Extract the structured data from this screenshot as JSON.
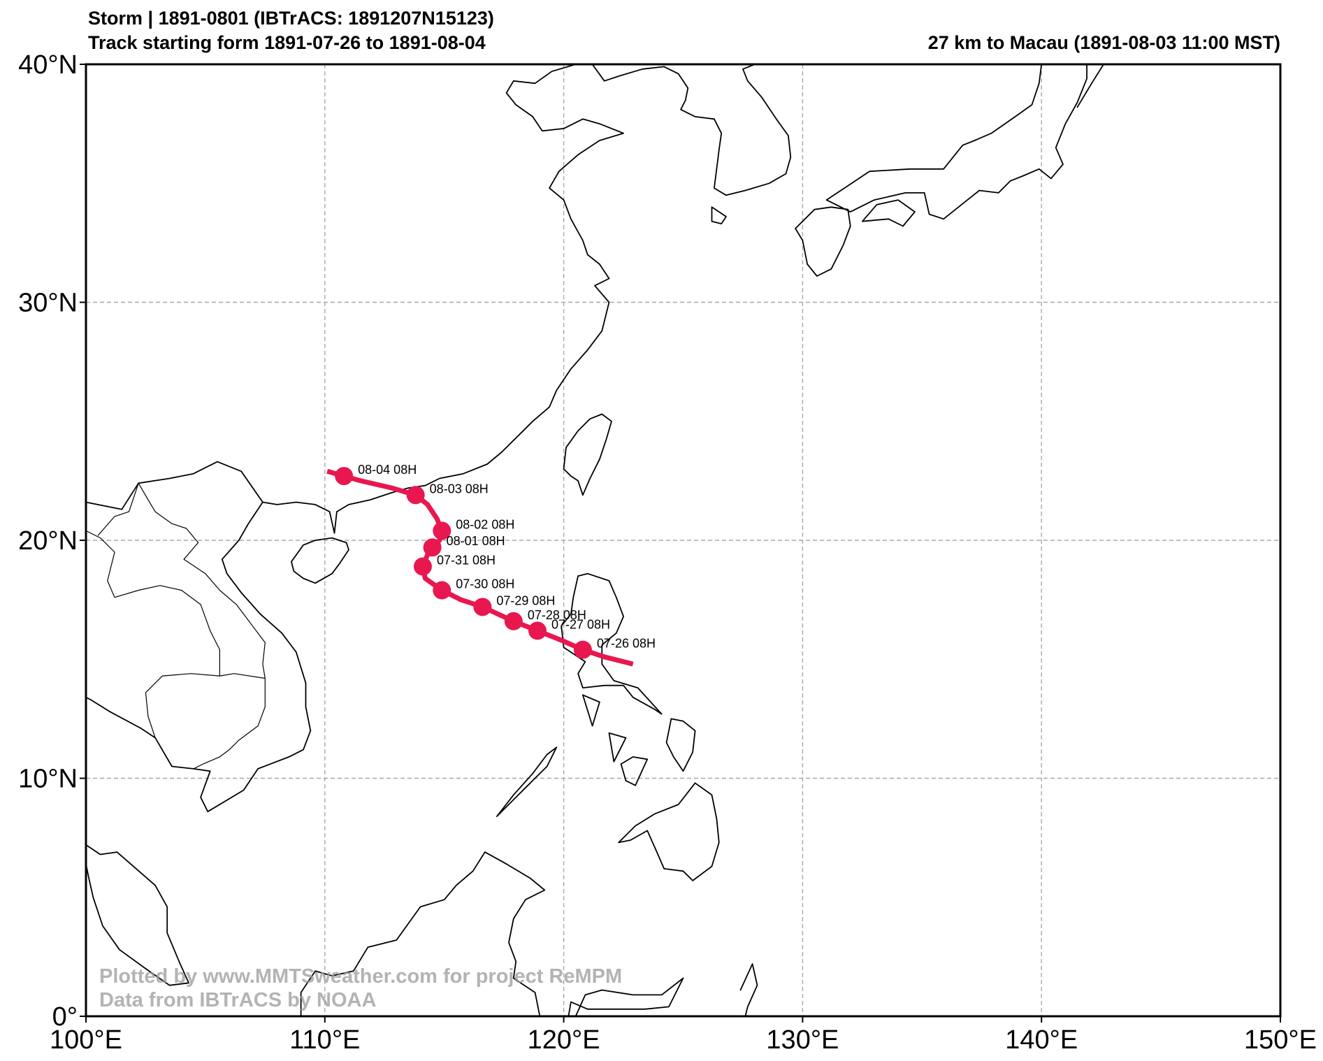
{
  "header": {
    "title_line1": "Storm | 1891-0801 (IBTrACS: 1891207N15123)",
    "title_line2": "Track starting form 1891-07-26 to 1891-08-04",
    "distance_note": "27 km to Macau (1891-08-03 11:00 MST)"
  },
  "credits": {
    "line1": "Plotted by www.MMTSweather.com for project ReMPM",
    "line2": "Data from IBTrACS by NOAA"
  },
  "colors": {
    "track": "#e8174f",
    "coastline": "#000000",
    "grid": "#a8a8a8",
    "background": "#ffffff"
  },
  "map": {
    "lon_range": [
      100,
      150
    ],
    "lat_range": [
      0,
      40
    ],
    "gridlines": true,
    "lon_ticks": [
      {
        "value": 100,
        "label": "100°E"
      },
      {
        "value": 110,
        "label": "110°E"
      },
      {
        "value": 120,
        "label": "120°E"
      },
      {
        "value": 130,
        "label": "130°E"
      },
      {
        "value": 140,
        "label": "140°E"
      },
      {
        "value": 150,
        "label": "150°E"
      }
    ],
    "lat_ticks": [
      {
        "value": 0,
        "label": "0°"
      },
      {
        "value": 10,
        "label": "10°N"
      },
      {
        "value": 20,
        "label": "20°N"
      },
      {
        "value": 30,
        "label": "30°N"
      },
      {
        "value": 40,
        "label": "40°N"
      }
    ]
  },
  "track": {
    "path": [
      [
        122.9,
        14.8
      ],
      [
        121.7,
        15.1
      ],
      [
        120.8,
        15.4
      ],
      [
        119.9,
        15.8
      ],
      [
        118.9,
        16.2
      ],
      [
        117.9,
        16.6
      ],
      [
        116.6,
        17.2
      ],
      [
        115.7,
        17.5
      ],
      [
        114.9,
        17.9
      ],
      [
        114.2,
        18.4
      ],
      [
        114.1,
        18.9
      ],
      [
        114.3,
        19.4
      ],
      [
        114.5,
        19.7
      ],
      [
        114.8,
        20.0
      ],
      [
        114.9,
        20.4
      ],
      [
        114.7,
        20.9
      ],
      [
        114.3,
        21.5
      ],
      [
        113.8,
        21.9
      ],
      [
        112.8,
        22.2
      ],
      [
        111.5,
        22.5
      ],
      [
        110.8,
        22.7
      ],
      [
        110.1,
        22.9
      ]
    ],
    "points": [
      {
        "lon": 120.8,
        "lat": 15.4,
        "label": "07-26 08H"
      },
      {
        "lon": 118.9,
        "lat": 16.2,
        "label": "07-27 08H"
      },
      {
        "lon": 117.9,
        "lat": 16.6,
        "label": "07-28 08H"
      },
      {
        "lon": 116.6,
        "lat": 17.2,
        "label": "07-29 08H"
      },
      {
        "lon": 114.9,
        "lat": 17.9,
        "label": "07-30 08H"
      },
      {
        "lon": 114.1,
        "lat": 18.9,
        "label": "07-31 08H"
      },
      {
        "lon": 114.5,
        "lat": 19.7,
        "label": "08-01 08H"
      },
      {
        "lon": 114.9,
        "lat": 20.4,
        "label": "08-02 08H"
      },
      {
        "lon": 113.8,
        "lat": 21.9,
        "label": "08-03 08H"
      },
      {
        "lon": 110.8,
        "lat": 22.7,
        "label": "08-04 08H"
      }
    ]
  },
  "coastlines": [
    [
      [
        100.0,
        21.6
      ],
      [
        101.5,
        21.3
      ],
      [
        102.2,
        22.4
      ],
      [
        103.5,
        22.6
      ],
      [
        104.5,
        22.8
      ],
      [
        105.5,
        23.3
      ],
      [
        106.5,
        22.9
      ],
      [
        107.4,
        21.6
      ],
      [
        108.0,
        21.5
      ],
      [
        108.8,
        21.6
      ],
      [
        109.6,
        21.5
      ],
      [
        110.2,
        21.2
      ],
      [
        110.4,
        20.3
      ],
      [
        110.5,
        21.2
      ],
      [
        111.0,
        21.5
      ],
      [
        111.9,
        21.7
      ],
      [
        112.8,
        22.0
      ],
      [
        113.5,
        22.2
      ],
      [
        114.2,
        22.3
      ],
      [
        114.8,
        22.6
      ],
      [
        115.8,
        22.8
      ],
      [
        116.8,
        23.2
      ],
      [
        117.4,
        23.7
      ],
      [
        118.2,
        24.5
      ],
      [
        118.7,
        25.0
      ],
      [
        119.4,
        25.6
      ],
      [
        119.7,
        26.3
      ],
      [
        120.3,
        27.2
      ],
      [
        121.0,
        28.0
      ],
      [
        121.6,
        28.8
      ],
      [
        121.8,
        29.6
      ],
      [
        121.9,
        30.0
      ],
      [
        121.3,
        30.7
      ],
      [
        121.9,
        31.0
      ],
      [
        121.5,
        31.6
      ],
      [
        121.0,
        32.0
      ],
      [
        120.8,
        32.6
      ],
      [
        120.3,
        33.5
      ],
      [
        120.0,
        34.3
      ],
      [
        119.4,
        34.8
      ],
      [
        119.8,
        35.5
      ],
      [
        120.6,
        36.2
      ],
      [
        121.5,
        36.8
      ],
      [
        122.5,
        37.1
      ],
      [
        121.5,
        37.5
      ],
      [
        120.8,
        37.7
      ],
      [
        120.0,
        37.3
      ],
      [
        119.1,
        37.2
      ],
      [
        118.7,
        37.8
      ],
      [
        118.0,
        38.3
      ],
      [
        117.6,
        38.8
      ],
      [
        117.9,
        39.3
      ],
      [
        118.8,
        39.2
      ],
      [
        119.5,
        39.7
      ],
      [
        120.5,
        40.0
      ]
    ],
    [
      [
        121.2,
        40.0
      ],
      [
        121.7,
        39.3
      ],
      [
        122.3,
        39.5
      ],
      [
        123.3,
        39.8
      ],
      [
        124.2,
        39.9
      ],
      [
        124.8,
        39.6
      ],
      [
        125.2,
        39.0
      ],
      [
        125.1,
        38.5
      ],
      [
        124.9,
        38.1
      ],
      [
        125.5,
        37.8
      ],
      [
        126.3,
        37.7
      ],
      [
        126.6,
        37.1
      ],
      [
        126.5,
        36.4
      ],
      [
        126.4,
        35.6
      ],
      [
        126.3,
        34.8
      ],
      [
        126.8,
        34.5
      ],
      [
        127.6,
        34.7
      ],
      [
        128.6,
        35.0
      ],
      [
        129.3,
        35.4
      ],
      [
        129.5,
        36.1
      ],
      [
        129.4,
        37.0
      ],
      [
        128.9,
        37.7
      ],
      [
        128.3,
        38.6
      ],
      [
        127.7,
        39.3
      ],
      [
        127.5,
        39.8
      ],
      [
        128.0,
        40.0
      ]
    ],
    [
      [
        120.0,
        23.0
      ],
      [
        120.1,
        23.9
      ],
      [
        120.6,
        24.6
      ],
      [
        121.1,
        25.1
      ],
      [
        121.6,
        25.3
      ],
      [
        122.0,
        25.0
      ],
      [
        121.8,
        24.3
      ],
      [
        121.5,
        23.4
      ],
      [
        121.1,
        22.6
      ],
      [
        120.8,
        21.9
      ],
      [
        120.6,
        22.5
      ],
      [
        120.3,
        22.7
      ],
      [
        120.0,
        23.0
      ]
    ],
    [
      [
        108.6,
        19.1
      ],
      [
        109.1,
        19.8
      ],
      [
        109.6,
        20.0
      ],
      [
        110.3,
        20.1
      ],
      [
        110.9,
        19.9
      ],
      [
        111.0,
        19.6
      ],
      [
        110.6,
        19.0
      ],
      [
        110.3,
        18.6
      ],
      [
        109.6,
        18.2
      ],
      [
        109.1,
        18.4
      ],
      [
        108.7,
        18.7
      ],
      [
        108.6,
        19.1
      ]
    ],
    [
      [
        120.6,
        18.5
      ],
      [
        121.0,
        18.6
      ],
      [
        121.9,
        18.3
      ],
      [
        122.2,
        17.6
      ],
      [
        122.5,
        16.8
      ],
      [
        122.2,
        16.1
      ],
      [
        121.6,
        15.6
      ],
      [
        121.6,
        14.8
      ],
      [
        122.1,
        14.1
      ],
      [
        123.1,
        13.8
      ],
      [
        124.1,
        12.7
      ],
      [
        123.8,
        12.9
      ],
      [
        122.9,
        13.4
      ],
      [
        122.5,
        13.9
      ],
      [
        121.7,
        13.9
      ],
      [
        120.8,
        13.8
      ],
      [
        120.6,
        14.4
      ],
      [
        120.9,
        14.9
      ],
      [
        120.0,
        15.5
      ],
      [
        119.9,
        16.4
      ],
      [
        120.3,
        16.9
      ],
      [
        120.4,
        17.6
      ],
      [
        120.6,
        18.5
      ]
    ],
    [
      [
        122.3,
        7.3
      ],
      [
        123.0,
        8.0
      ],
      [
        123.8,
        8.5
      ],
      [
        124.8,
        8.9
      ],
      [
        125.5,
        9.8
      ],
      [
        126.2,
        9.3
      ],
      [
        126.4,
        8.3
      ],
      [
        126.5,
        7.3
      ],
      [
        126.2,
        6.3
      ],
      [
        125.4,
        5.7
      ],
      [
        125.0,
        6.1
      ],
      [
        124.2,
        6.2
      ],
      [
        123.9,
        6.9
      ],
      [
        123.5,
        7.8
      ],
      [
        122.8,
        7.4
      ],
      [
        122.3,
        7.3
      ]
    ],
    [
      [
        124.5,
        12.5
      ],
      [
        125.0,
        12.4
      ],
      [
        125.5,
        12.0
      ],
      [
        125.4,
        11.1
      ],
      [
        125.0,
        10.3
      ],
      [
        124.6,
        10.9
      ],
      [
        124.3,
        11.5
      ],
      [
        124.5,
        12.5
      ]
    ],
    [
      [
        117.2,
        8.4
      ],
      [
        117.9,
        9.1
      ],
      [
        118.6,
        9.8
      ],
      [
        119.3,
        10.5
      ],
      [
        119.7,
        11.3
      ],
      [
        119.3,
        11.0
      ],
      [
        118.7,
        10.2
      ],
      [
        117.9,
        9.3
      ],
      [
        117.2,
        8.4
      ]
    ],
    [
      [
        122.9,
        10.9
      ],
      [
        123.5,
        10.8
      ],
      [
        123.0,
        9.7
      ],
      [
        122.6,
        9.9
      ],
      [
        122.4,
        10.6
      ],
      [
        122.9,
        10.9
      ]
    ],
    [
      [
        121.9,
        11.9
      ],
      [
        122.6,
        11.7
      ],
      [
        122.1,
        10.7
      ],
      [
        121.9,
        11.9
      ]
    ],
    [
      [
        120.8,
        13.5
      ],
      [
        121.5,
        13.2
      ],
      [
        121.2,
        12.2
      ],
      [
        120.8,
        13.5
      ]
    ],
    [
      [
        109.4,
        12.0
      ],
      [
        109.1,
        11.2
      ],
      [
        108.5,
        10.9
      ],
      [
        107.2,
        10.4
      ],
      [
        106.6,
        9.5
      ],
      [
        105.1,
        8.6
      ],
      [
        104.8,
        9.2
      ],
      [
        105.2,
        10.3
      ],
      [
        104.5,
        10.4
      ],
      [
        103.6,
        10.5
      ],
      [
        102.9,
        11.7
      ],
      [
        102.3,
        12.1
      ],
      [
        101.0,
        12.8
      ],
      [
        100.2,
        13.3
      ],
      [
        100.0,
        13.4
      ]
    ],
    [
      [
        109.4,
        12.0
      ],
      [
        109.2,
        13.0
      ],
      [
        109.2,
        14.0
      ],
      [
        108.8,
        15.3
      ],
      [
        108.2,
        16.1
      ],
      [
        107.3,
        16.9
      ],
      [
        106.5,
        17.8
      ],
      [
        105.9,
        18.6
      ],
      [
        105.7,
        19.2
      ],
      [
        106.4,
        20.0
      ],
      [
        106.8,
        20.7
      ],
      [
        107.4,
        21.6
      ]
    ],
    [
      [
        100.0,
        7.2
      ],
      [
        100.6,
        6.8
      ],
      [
        101.3,
        6.9
      ],
      [
        102.1,
        6.2
      ],
      [
        102.9,
        5.5
      ],
      [
        103.4,
        4.6
      ],
      [
        103.4,
        3.5
      ],
      [
        103.9,
        2.3
      ],
      [
        104.3,
        1.4
      ],
      [
        103.5,
        1.3
      ],
      [
        102.5,
        2.0
      ],
      [
        101.4,
        2.8
      ],
      [
        100.7,
        3.8
      ],
      [
        100.3,
        5.0
      ],
      [
        100.1,
        5.9
      ],
      [
        100.0,
        6.4
      ]
    ],
    [
      [
        109.6,
        1.9
      ],
      [
        110.3,
        1.7
      ],
      [
        111.2,
        1.9
      ],
      [
        111.8,
        2.9
      ],
      [
        113.0,
        3.2
      ],
      [
        114.0,
        4.6
      ],
      [
        115.0,
        4.9
      ],
      [
        115.5,
        5.5
      ],
      [
        116.2,
        6.1
      ],
      [
        116.7,
        6.9
      ],
      [
        117.6,
        6.4
      ],
      [
        118.6,
        5.8
      ],
      [
        119.2,
        5.3
      ],
      [
        118.4,
        4.9
      ],
      [
        117.9,
        4.1
      ],
      [
        117.7,
        3.1
      ],
      [
        118.0,
        2.3
      ],
      [
        117.9,
        1.6
      ],
      [
        118.8,
        1.0
      ],
      [
        119.0,
        0.0
      ]
    ],
    [
      [
        109.6,
        1.9
      ],
      [
        109.0,
        1.0
      ],
      [
        109.0,
        0.0
      ]
    ],
    [
      [
        120.5,
        0.0
      ],
      [
        120.9,
        0.9
      ],
      [
        121.6,
        1.1
      ],
      [
        122.9,
        0.9
      ],
      [
        124.1,
        0.9
      ],
      [
        125.0,
        1.6
      ],
      [
        124.4,
        0.4
      ],
      [
        123.4,
        0.3
      ],
      [
        121.0,
        0.3
      ],
      [
        120.3,
        0.6
      ],
      [
        120.2,
        0.0
      ]
    ],
    [
      [
        127.4,
        1.1
      ],
      [
        127.9,
        2.2
      ],
      [
        128.1,
        1.3
      ],
      [
        127.7,
        0.4
      ],
      [
        127.6,
        0.0
      ]
    ],
    [
      [
        129.7,
        33.1
      ],
      [
        130.5,
        33.9
      ],
      [
        131.2,
        34.0
      ],
      [
        131.9,
        33.9
      ],
      [
        132.0,
        33.2
      ],
      [
        131.7,
        32.4
      ],
      [
        131.2,
        31.4
      ],
      [
        130.6,
        31.1
      ],
      [
        130.2,
        31.6
      ],
      [
        130.0,
        32.6
      ],
      [
        129.7,
        33.1
      ]
    ],
    [
      [
        132.0,
        33.8
      ],
      [
        133.0,
        34.3
      ],
      [
        134.3,
        34.6
      ],
      [
        135.1,
        34.6
      ],
      [
        135.3,
        33.7
      ],
      [
        135.9,
        33.5
      ],
      [
        136.9,
        34.3
      ],
      [
        137.4,
        34.7
      ],
      [
        138.2,
        34.6
      ],
      [
        138.7,
        35.1
      ],
      [
        139.2,
        35.3
      ],
      [
        139.9,
        35.6
      ],
      [
        140.4,
        35.2
      ],
      [
        140.9,
        35.8
      ],
      [
        140.6,
        36.5
      ],
      [
        141.0,
        37.5
      ],
      [
        141.5,
        38.4
      ],
      [
        141.9,
        39.4
      ],
      [
        141.9,
        40.0
      ]
    ],
    [
      [
        140.0,
        40.0
      ],
      [
        139.9,
        39.2
      ],
      [
        139.6,
        38.3
      ],
      [
        138.9,
        37.8
      ],
      [
        137.9,
        37.1
      ],
      [
        137.2,
        36.8
      ],
      [
        136.7,
        36.6
      ],
      [
        135.9,
        35.6
      ],
      [
        134.5,
        35.6
      ],
      [
        132.8,
        35.5
      ],
      [
        131.9,
        34.9
      ],
      [
        131.0,
        34.3
      ],
      [
        132.0,
        33.8
      ]
    ],
    [
      [
        132.5,
        33.4
      ],
      [
        133.6,
        33.5
      ],
      [
        134.2,
        33.2
      ],
      [
        134.7,
        33.8
      ],
      [
        134.0,
        34.3
      ],
      [
        133.1,
        34.1
      ],
      [
        132.5,
        33.4
      ]
    ],
    [
      [
        142.6,
        40.0
      ],
      [
        142.1,
        39.2
      ],
      [
        141.5,
        38.2
      ]
    ],
    [
      [
        126.2,
        34.0
      ],
      [
        126.8,
        33.6
      ],
      [
        126.6,
        33.3
      ],
      [
        126.2,
        33.4
      ],
      [
        126.2,
        34.0
      ]
    ]
  ],
  "borders": [
    [
      [
        102.2,
        22.4
      ],
      [
        102.6,
        21.7
      ],
      [
        102.9,
        21.2
      ],
      [
        103.6,
        20.7
      ],
      [
        104.2,
        20.5
      ],
      [
        104.7,
        19.9
      ],
      [
        104.1,
        19.2
      ],
      [
        105.0,
        18.6
      ],
      [
        105.6,
        17.9
      ],
      [
        106.3,
        17.3
      ],
      [
        106.9,
        16.5
      ],
      [
        107.5,
        15.7
      ],
      [
        107.4,
        14.8
      ],
      [
        107.5,
        14.2
      ]
    ],
    [
      [
        100.5,
        20.2
      ],
      [
        101.2,
        21.0
      ],
      [
        101.8,
        21.2
      ],
      [
        102.2,
        22.4
      ]
    ],
    [
      [
        105.6,
        14.3
      ],
      [
        106.2,
        14.4
      ],
      [
        107.5,
        14.2
      ],
      [
        107.5,
        13.0
      ],
      [
        107.2,
        12.2
      ],
      [
        106.4,
        11.6
      ],
      [
        106.0,
        11.2
      ],
      [
        105.6,
        10.9
      ],
      [
        104.9,
        10.6
      ],
      [
        104.5,
        10.4
      ]
    ],
    [
      [
        102.9,
        11.7
      ],
      [
        102.6,
        12.6
      ],
      [
        102.5,
        13.6
      ],
      [
        103.2,
        14.3
      ],
      [
        104.4,
        14.4
      ],
      [
        105.6,
        14.3
      ],
      [
        105.6,
        15.4
      ],
      [
        105.2,
        16.2
      ],
      [
        104.8,
        17.3
      ],
      [
        104.0,
        17.9
      ],
      [
        103.1,
        18.1
      ],
      [
        102.2,
        17.9
      ],
      [
        101.2,
        17.6
      ],
      [
        100.9,
        18.3
      ],
      [
        101.2,
        19.5
      ],
      [
        100.6,
        20.1
      ],
      [
        100.0,
        20.4
      ]
    ]
  ]
}
